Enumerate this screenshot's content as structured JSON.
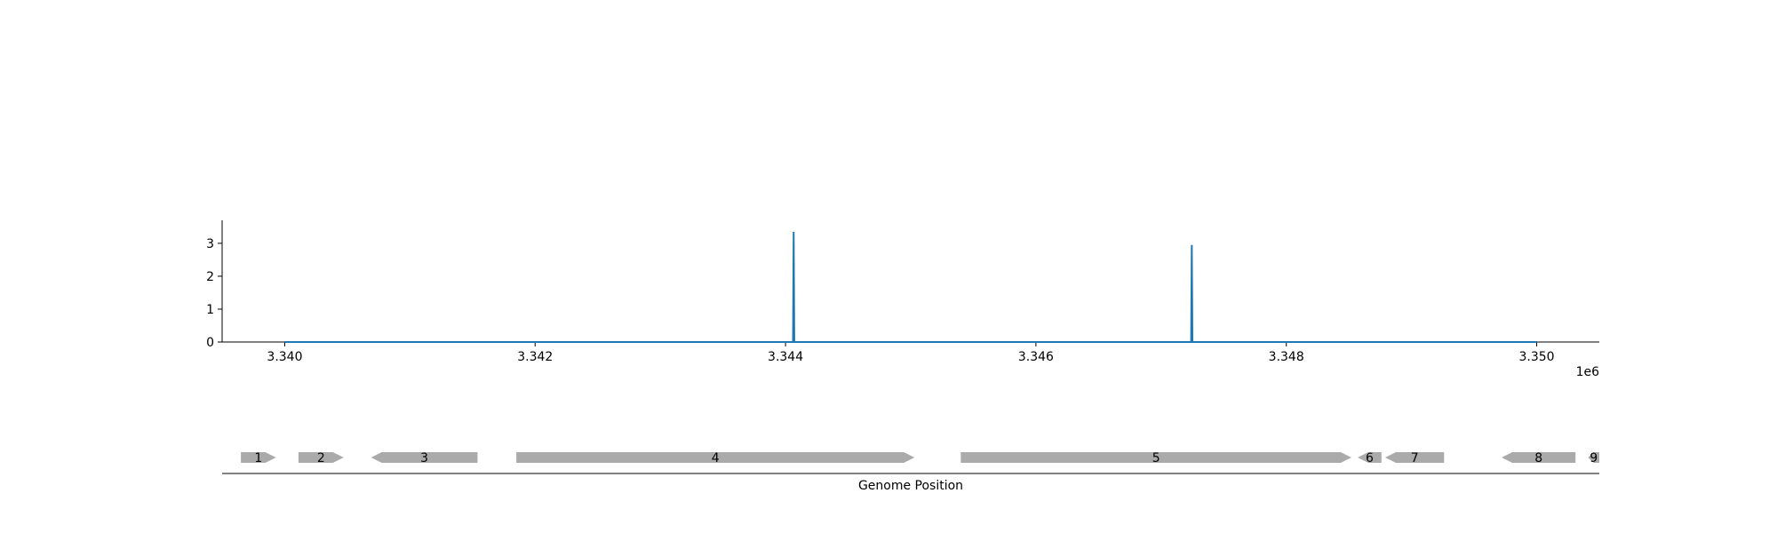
{
  "chart_data": [
    {
      "type": "line",
      "title": "",
      "xlabel": "",
      "ylabel": "",
      "x_offset_label": "1e6",
      "xlim": [
        3339500,
        3350500
      ],
      "ylim": [
        0,
        3.7
      ],
      "x_ticks": [
        3340000,
        3342000,
        3344000,
        3346000,
        3348000,
        3350000
      ],
      "x_tick_labels": [
        "3.340",
        "3.342",
        "3.344",
        "3.346",
        "3.348",
        "3.350"
      ],
      "y_ticks": [
        0,
        1,
        2,
        3
      ],
      "y_tick_labels": [
        "0",
        "1",
        "2",
        "3"
      ],
      "grid": false,
      "series": [
        {
          "color": "#1f77b4",
          "x": [
            3340000,
            3344060,
            3344065,
            3344070,
            3347240,
            3347245,
            3347250,
            3350000
          ],
          "y": [
            0,
            0,
            3.35,
            0,
            0,
            2.95,
            0,
            0
          ]
        }
      ]
    },
    {
      "type": "gene-track",
      "xlabel": "Genome Position",
      "xlim": [
        3339500,
        3350500
      ],
      "color": "#aaaaaa",
      "genes": [
        {
          "label": "1",
          "start": 3339650,
          "end": 3339930,
          "strand": "+"
        },
        {
          "label": "2",
          "start": 3340110,
          "end": 3340470,
          "strand": "+"
        },
        {
          "label": "3",
          "start": 3340690,
          "end": 3341540,
          "strand": "-"
        },
        {
          "label": "4",
          "start": 3341850,
          "end": 3345030,
          "strand": "+"
        },
        {
          "label": "5",
          "start": 3345400,
          "end": 3348520,
          "strand": "+"
        },
        {
          "label": "6",
          "start": 3348570,
          "end": 3348760,
          "strand": "-"
        },
        {
          "label": "7",
          "start": 3348790,
          "end": 3349260,
          "strand": "-"
        },
        {
          "label": "8",
          "start": 3349720,
          "end": 3350310,
          "strand": "-"
        },
        {
          "label": "9",
          "start": 3350410,
          "end": 3350500,
          "strand": "-"
        }
      ]
    }
  ]
}
